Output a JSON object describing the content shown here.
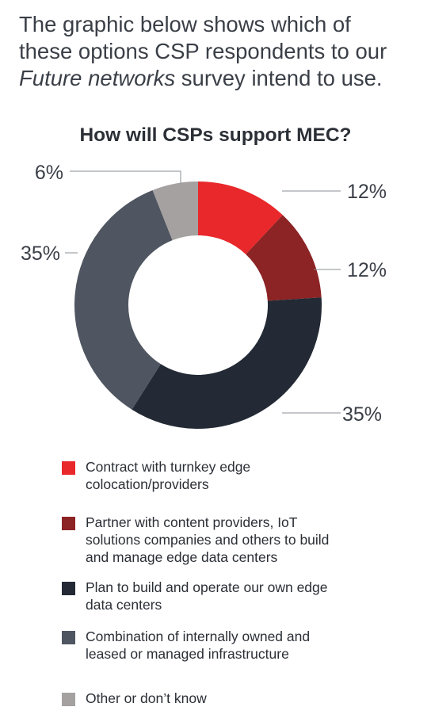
{
  "intro": {
    "line1": "The graphic below shows which of",
    "line2": "these options CSP respondents to our",
    "line3_italic": "Future networks",
    "line3_rest": " survey intend to use."
  },
  "chart_data": {
    "type": "pie",
    "donut": true,
    "title": "How will CSPs support MEC?",
    "slices": [
      {
        "label_lines": [
          "Contract with turnkey edge",
          "colocation/providers"
        ],
        "value": 12,
        "display": "12%",
        "color": "#e8282b"
      },
      {
        "label_lines": [
          "Partner with content providers, IoT",
          "solutions companies and others to build",
          "and manage edge data centers"
        ],
        "value": 12,
        "display": "12%",
        "color": "#8c2324"
      },
      {
        "label_lines": [
          "Plan to build and operate our own edge",
          "data centers"
        ],
        "value": 35,
        "display": "35%",
        "color": "#232a35"
      },
      {
        "label_lines": [
          "Combination of internally owned and",
          "leased or managed infrastructure"
        ],
        "value": 35,
        "display": "35%",
        "color": "#4f5661"
      },
      {
        "label_lines": [
          "Other or don’t know"
        ],
        "value": 6,
        "display": "6%",
        "color": "#a4a1a0"
      }
    ],
    "legend_position": "bottom"
  }
}
